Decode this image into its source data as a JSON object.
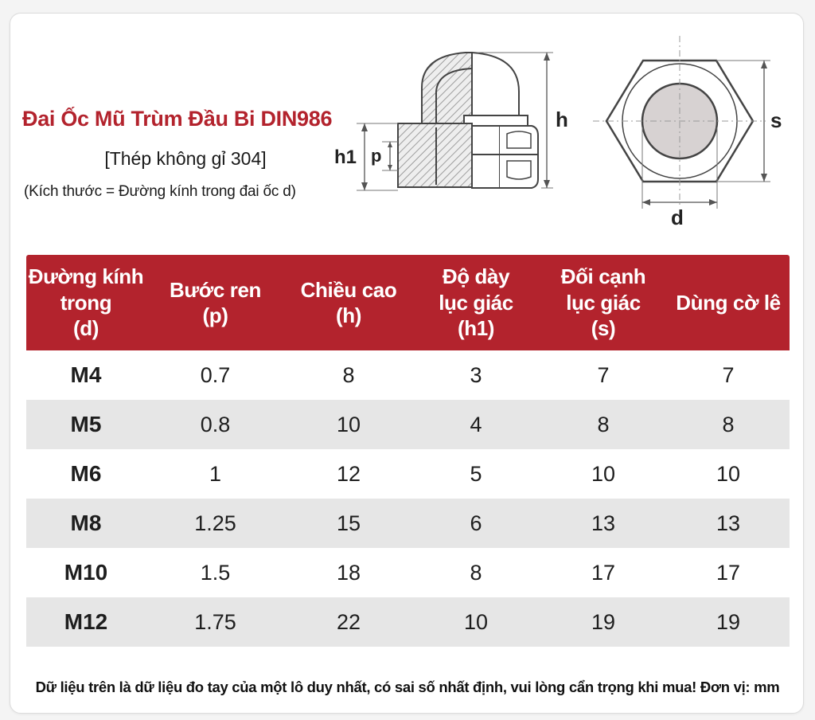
{
  "header": {
    "title": "Đai Ốc Mũ Trùm Đầu Bi DIN986",
    "material": "[Thép không gỉ 304]",
    "note": "(Kích thước = Đường kính trong đai ốc d)"
  },
  "diagram": {
    "labels": {
      "h": "h",
      "h1": "h1",
      "p": "p",
      "s": "s",
      "d": "d"
    },
    "colors": {
      "accent": "#b3232d",
      "line": "#555555",
      "fill_inner": "#d7d2d2"
    }
  },
  "table": {
    "headers": [
      [
        "Đường kính",
        "trong",
        "(d)"
      ],
      [
        "Bước ren",
        "(p)"
      ],
      [
        "Chiều cao",
        "(h)"
      ],
      [
        "Độ dày",
        "lục giác",
        "(h1)"
      ],
      [
        "Đối cạnh",
        "lục giác",
        "(s)"
      ],
      [
        "Dùng cờ lê"
      ]
    ],
    "rows": [
      [
        "M4",
        "0.7",
        "8",
        "3",
        "7",
        "7"
      ],
      [
        "M5",
        "0.8",
        "10",
        "4",
        "8",
        "8"
      ],
      [
        "M6",
        "1",
        "12",
        "5",
        "10",
        "10"
      ],
      [
        "M8",
        "1.25",
        "15",
        "6",
        "13",
        "13"
      ],
      [
        "M10",
        "1.5",
        "18",
        "8",
        "17",
        "17"
      ],
      [
        "M12",
        "1.75",
        "22",
        "10",
        "19",
        "19"
      ]
    ]
  },
  "footer": "Dữ liệu trên là dữ liệu đo tay của một lô duy nhất, có sai số nhất định, vui lòng cẩn trọng khi mua! Đơn vị: mm"
}
